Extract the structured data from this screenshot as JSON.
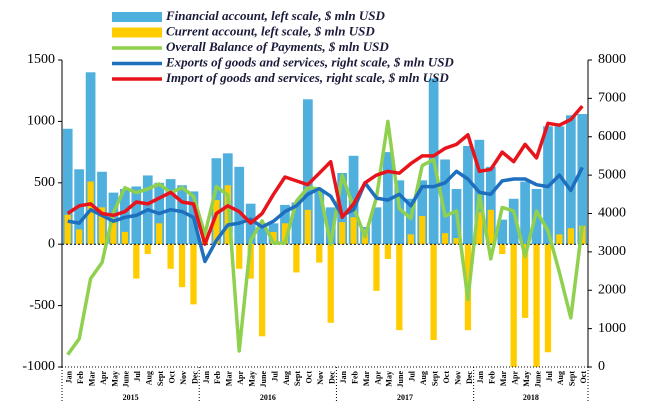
{
  "chart_data": {
    "type": "combo",
    "categories": [
      "Jan",
      "Feb",
      "Mar",
      "Apr",
      "May",
      "June",
      "Jul",
      "Aug",
      "Sept",
      "Oct",
      "Nov",
      "Dec",
      "Jan",
      "Feb",
      "Mar",
      "Apr",
      "May",
      "June",
      "Jul",
      "Aug",
      "Sept",
      "Oct",
      "Nov",
      "Dec",
      "Jan",
      "Feb",
      "Mar",
      "Apr",
      "May",
      "June",
      "Jul",
      "Aug",
      "Sept",
      "Oct",
      "Nov",
      "Dec",
      "Jan",
      "Feb",
      "Mar",
      "Apr",
      "May",
      "June",
      "Jul",
      "Aug",
      "Sept",
      "Oct"
    ],
    "year_groups": [
      {
        "label": "2015",
        "count": 12
      },
      {
        "label": "2016",
        "count": 12
      },
      {
        "label": "2017",
        "count": 12
      },
      {
        "label": "2018",
        "count": 10
      }
    ],
    "ylim": [
      -1000,
      1500
    ],
    "yticks": [
      -1000,
      -500,
      0,
      500,
      1000,
      1500
    ],
    "y2lim": [
      0,
      8000
    ],
    "y2ticks": [
      0,
      1000,
      2000,
      3000,
      4000,
      5000,
      6000,
      7000,
      8000
    ],
    "series": [
      {
        "name": "Financial account, left scale, $ mln USD",
        "type": "bar",
        "color": "#4fb0de",
        "values": [
          940,
          610,
          1400,
          590,
          420,
          450,
          470,
          560,
          500,
          530,
          480,
          430,
          0,
          700,
          740,
          630,
          330,
          150,
          170,
          320,
          340,
          1180,
          430,
          300,
          580,
          720,
          140,
          300,
          750,
          520,
          370,
          520,
          1350,
          690,
          450,
          800,
          850,
          630,
          200,
          370,
          510,
          450,
          960,
          960,
          1050,
          1060
        ]
      },
      {
        "name": "Current account, left scale, $ mln USD",
        "type": "bar",
        "color": "#ffcc00",
        "values": [
          240,
          120,
          510,
          300,
          210,
          100,
          -280,
          -80,
          170,
          -200,
          -350,
          -490,
          100,
          360,
          480,
          -200,
          -280,
          -750,
          100,
          170,
          -230,
          280,
          -150,
          -640,
          180,
          220,
          120,
          -380,
          -120,
          -700,
          80,
          230,
          -780,
          90,
          50,
          -700,
          260,
          280,
          -80,
          -1000,
          -600,
          -1000,
          -880,
          80,
          130,
          150
        ]
      },
      {
        "name": "Overall Balance of Payments, $ mln USD",
        "type": "line",
        "color": "#8fd14f",
        "values": [
          -900,
          -770,
          -280,
          -150,
          260,
          460,
          420,
          450,
          490,
          420,
          460,
          390,
          80,
          470,
          400,
          -870,
          30,
          190,
          10,
          10,
          350,
          460,
          450,
          0,
          560,
          300,
          60,
          380,
          1000,
          290,
          210,
          640,
          690,
          230,
          270,
          -450,
          410,
          -120,
          300,
          270,
          -100,
          270,
          110,
          -230,
          -600,
          150
        ]
      },
      {
        "name": "Exports of goods and services, right scale, $ mln USD",
        "type": "line",
        "axis": "y2",
        "color": "#1f6fbf",
        "values": [
          3800,
          3750,
          4100,
          3950,
          3800,
          3900,
          3950,
          4100,
          4000,
          4100,
          4050,
          3900,
          2750,
          3300,
          3700,
          3750,
          3850,
          3650,
          3800,
          4050,
          4200,
          4500,
          4650,
          4450,
          3950,
          4100,
          4800,
          4400,
          4350,
          4500,
          4200,
          4700,
          4700,
          4800,
          5100,
          4900,
          4550,
          4500,
          4850,
          4900,
          4900,
          4750,
          4700,
          5000,
          4600,
          5200
        ]
      },
      {
        "name": "Import of goods and services, right scale, $ mln USD",
        "type": "line",
        "axis": "y2",
        "color": "#e8141c",
        "values": [
          4000,
          4200,
          4250,
          4000,
          3950,
          4050,
          4300,
          4250,
          4400,
          4550,
          4300,
          4250,
          3200,
          4000,
          4200,
          4050,
          3750,
          4000,
          4500,
          4950,
          4850,
          4750,
          5050,
          5350,
          3900,
          4250,
          4800,
          5000,
          5100,
          5050,
          5300,
          5500,
          5500,
          5700,
          5800,
          6050,
          5100,
          5150,
          5600,
          5350,
          5800,
          5450,
          6350,
          6300,
          6450,
          6800
        ]
      }
    ]
  }
}
